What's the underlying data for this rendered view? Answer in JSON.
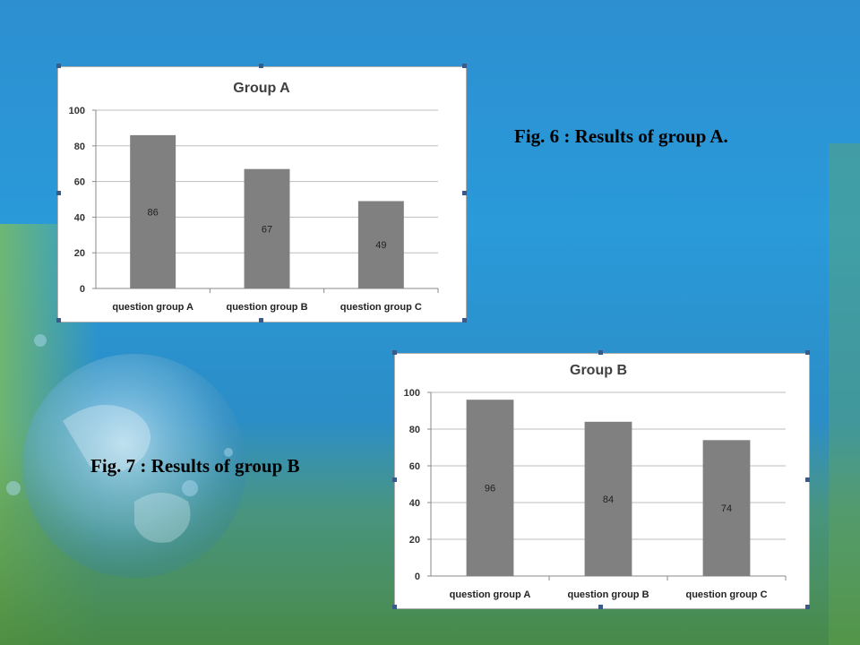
{
  "slide": {
    "caption_a": "Fig. 6 : Results of group A.",
    "caption_b": "Fig. 7 : Results of group B"
  },
  "chart_data": [
    {
      "type": "bar",
      "title": "Group A",
      "categories": [
        "question group A",
        "question group B",
        "question group C"
      ],
      "values": [
        86,
        67,
        49
      ],
      "data_labels": [
        "86",
        "67",
        "49"
      ],
      "ylim": [
        0,
        100
      ],
      "yticks": [
        "0",
        "20",
        "40",
        "60",
        "80",
        "100"
      ],
      "xlabel": "",
      "ylabel": "",
      "grid": true,
      "legend": "none",
      "bar_color": "#808080"
    },
    {
      "type": "bar",
      "title": "Group B",
      "categories": [
        "question group A",
        "question group B",
        "question group C"
      ],
      "values": [
        96,
        84,
        74
      ],
      "data_labels": [
        "96",
        "84",
        "74"
      ],
      "ylim": [
        0,
        100
      ],
      "yticks": [
        "0",
        "20",
        "40",
        "60",
        "80",
        "100"
      ],
      "xlabel": "",
      "ylabel": "",
      "grid": true,
      "legend": "none",
      "bar_color": "#808080"
    }
  ]
}
